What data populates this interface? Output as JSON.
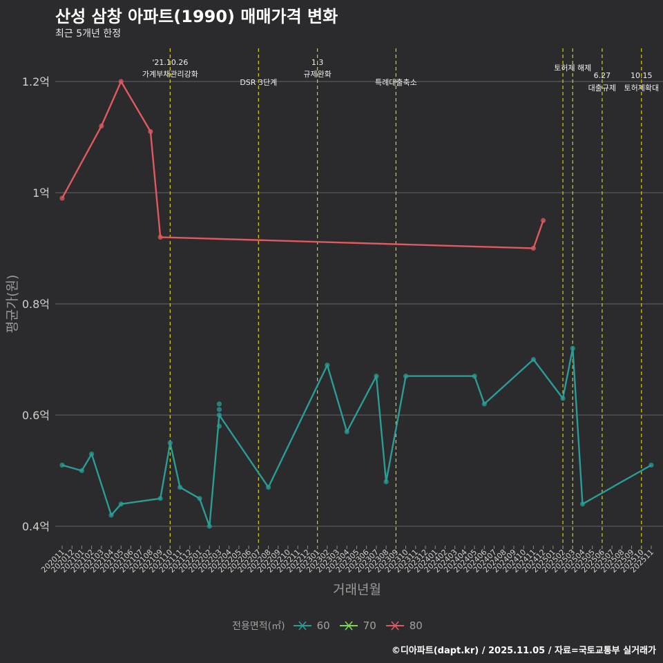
{
  "header": {
    "title": "산성 삼창 아파트(1990) 매매가격 변화",
    "subtitle": "최근 5개년 한정"
  },
  "caption": "©디아파트(dapt.kr) / 2025.11.05 / 자료=국토교통부 실거래가",
  "legend": {
    "title": "전용면적(㎡)",
    "items": [
      {
        "label": "60",
        "color": "#2a9d96"
      },
      {
        "label": "70",
        "color": "#7ed957"
      },
      {
        "label": "80",
        "color": "#e05a5f"
      }
    ]
  },
  "chart_data": {
    "type": "line",
    "xlabel": "거래년월",
    "ylabel": "평균가(원)",
    "ylim": [
      0.36,
      1.26
    ],
    "y_ticks": [
      0.4,
      0.6,
      0.8,
      1.0,
      1.2
    ],
    "y_tick_labels": [
      "0.4억",
      "0.6억",
      "0.8억",
      "1억",
      "1.2억"
    ],
    "categories": [
      "202011",
      "202012",
      "202101",
      "202102",
      "202103",
      "202104",
      "202105",
      "202106",
      "202107",
      "202108",
      "202109",
      "202110",
      "202111",
      "202112",
      "202201",
      "202202",
      "202203",
      "202204",
      "202205",
      "202206",
      "202207",
      "202208",
      "202209",
      "202210",
      "202211",
      "202212",
      "202301",
      "202302",
      "202303",
      "202304",
      "202305",
      "202306",
      "202307",
      "202308",
      "202309",
      "202310",
      "202311",
      "202312",
      "202401",
      "202402",
      "202403",
      "202404",
      "202405",
      "202406",
      "202407",
      "202408",
      "202409",
      "202410",
      "202411",
      "202412",
      "202501",
      "202502",
      "202503",
      "202504",
      "202505",
      "202506",
      "202507",
      "202508",
      "202509",
      "202510",
      "202511"
    ],
    "series": [
      {
        "name": "60",
        "color": "#2a9d96",
        "points": [
          [
            "202011",
            0.51
          ],
          [
            "202101",
            0.5
          ],
          [
            "202102",
            0.53
          ],
          [
            "202104",
            0.42
          ],
          [
            "202105",
            0.44
          ],
          [
            "202109",
            0.45
          ],
          [
            "202110",
            0.55
          ],
          [
            "202111",
            0.47
          ],
          [
            "202201",
            0.45
          ],
          [
            "202202",
            0.4
          ],
          [
            "202203",
            0.6
          ],
          [
            "202208",
            0.47
          ],
          [
            "202302",
            0.69
          ],
          [
            "202304",
            0.57
          ],
          [
            "202307",
            0.67
          ],
          [
            "202308",
            0.48
          ],
          [
            "202310",
            0.67
          ],
          [
            "202405",
            0.67
          ],
          [
            "202406",
            0.62
          ],
          [
            "202411",
            0.7
          ],
          [
            "202502",
            0.63
          ],
          [
            "202503",
            0.72
          ],
          [
            "202504",
            0.44
          ],
          [
            "202511",
            0.51
          ]
        ],
        "extra_points": [
          [
            "202203",
            0.62
          ],
          [
            "202203",
            0.61
          ],
          [
            "202203",
            0.58
          ]
        ]
      },
      {
        "name": "80",
        "color": "#e05a5f",
        "points": [
          [
            "202011",
            0.99
          ],
          [
            "202103",
            1.12
          ],
          [
            "202105",
            1.2
          ],
          [
            "202108",
            1.11
          ],
          [
            "202109",
            0.92
          ],
          [
            "202411",
            0.9
          ],
          [
            "202412",
            0.95
          ]
        ]
      }
    ],
    "events": [
      {
        "month": "202110",
        "lines": [
          "'21.10.26",
          "가계부채관리강화"
        ],
        "level": "high"
      },
      {
        "month": "202207",
        "lines": [
          "DSR 3단계"
        ],
        "level": "low"
      },
      {
        "month": "202301",
        "lines": [
          "1.3",
          "규제완화"
        ],
        "level": "high"
      },
      {
        "month": "202309",
        "lines": [
          "특례대출축소"
        ],
        "level": "low"
      },
      {
        "month": "202502",
        "lines": [],
        "level": "none"
      },
      {
        "month": "202503",
        "lines": [
          "토허제 해제"
        ],
        "level": "top"
      },
      {
        "month": "202506",
        "lines": [
          "6.27",
          "대출규제"
        ],
        "level": "mid"
      },
      {
        "month": "202510",
        "lines": [
          "10.15",
          "토허제확대"
        ],
        "level": "mid"
      }
    ]
  }
}
